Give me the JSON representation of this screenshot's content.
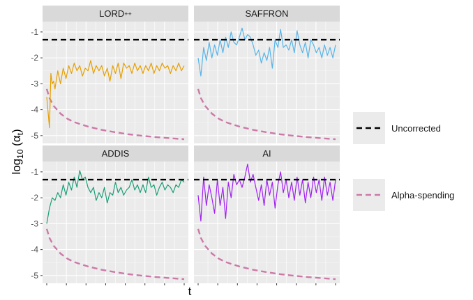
{
  "chart_data": {
    "type": "line",
    "xlabel": "t",
    "ylabel_main": "log",
    "ylabel_sub": "10",
    "ylabel_open": " (α",
    "ylabel_sub2": "t",
    "ylabel_close": ")",
    "ylim": [
      -5.3,
      -0.6
    ],
    "y_ticks": [
      -1,
      -2,
      -3,
      -4,
      -5
    ],
    "y_tick_labels": [
      "-1",
      "-2",
      "-3",
      "-4",
      "-5"
    ],
    "x_domain": [
      0,
      100
    ],
    "grid": true,
    "legend_position": "right",
    "reference_lines": {
      "uncorrected": {
        "label": "Uncorrected",
        "y": -1.3,
        "color": "#000000",
        "dash": "dashed"
      },
      "alpha_spending": {
        "label": "Alpha-spending",
        "color": "#cc79a7",
        "dash": "dashed",
        "x": [
          0,
          2,
          5,
          10,
          15,
          20,
          30,
          40,
          50,
          60,
          70,
          80,
          90,
          100
        ],
        "y": [
          -3.2,
          -3.55,
          -3.85,
          -4.15,
          -4.35,
          -4.48,
          -4.65,
          -4.78,
          -4.87,
          -4.95,
          -5.01,
          -5.06,
          -5.1,
          -5.14
        ]
      }
    },
    "panels": [
      {
        "name": "LORD++",
        "title_main": "LORD",
        "title_sup": "++",
        "color": "#e69f00",
        "x": [
          0,
          2,
          3,
          4,
          5,
          6,
          8,
          10,
          12,
          14,
          16,
          18,
          20,
          22,
          24,
          26,
          28,
          30,
          32,
          34,
          36,
          38,
          40,
          42,
          44,
          46,
          48,
          50,
          52,
          54,
          56,
          58,
          60,
          62,
          64,
          66,
          68,
          70,
          72,
          74,
          76,
          78,
          80,
          82,
          84,
          86,
          88,
          90,
          92,
          94,
          96,
          98,
          100
        ],
        "y": [
          -3.5,
          -4.7,
          -2.6,
          -3.0,
          -2.9,
          -3.2,
          -2.5,
          -3.0,
          -2.4,
          -2.8,
          -2.3,
          -2.6,
          -2.2,
          -2.5,
          -2.3,
          -2.7,
          -2.4,
          -2.5,
          -2.1,
          -2.6,
          -2.3,
          -2.5,
          -2.3,
          -2.7,
          -2.4,
          -2.9,
          -2.3,
          -2.6,
          -2.2,
          -2.8,
          -2.2,
          -2.4,
          -2.3,
          -2.6,
          -2.2,
          -2.5,
          -2.3,
          -2.6,
          -2.3,
          -2.5,
          -2.2,
          -2.6,
          -2.3,
          -2.5,
          -2.2,
          -2.4,
          -2.3,
          -2.6,
          -2.3,
          -2.5,
          -2.2,
          -2.5,
          -2.3
        ]
      },
      {
        "name": "SAFFRON",
        "color": "#56b4e9",
        "x": [
          0,
          2,
          4,
          6,
          8,
          10,
          12,
          14,
          16,
          18,
          20,
          22,
          24,
          26,
          28,
          30,
          32,
          34,
          36,
          38,
          40,
          42,
          44,
          46,
          48,
          50,
          52,
          54,
          56,
          58,
          60,
          62,
          64,
          66,
          68,
          70,
          72,
          74,
          76,
          78,
          80,
          82,
          84,
          86,
          88,
          90,
          92,
          94,
          96,
          98,
          100
        ],
        "y": [
          -2.0,
          -2.7,
          -1.6,
          -2.1,
          -1.4,
          -2.0,
          -1.5,
          -1.9,
          -1.3,
          -1.8,
          -1.2,
          -1.6,
          -1.0,
          -1.4,
          -1.5,
          -1.2,
          -0.85,
          -1.3,
          -1.1,
          -1.2,
          -1.5,
          -1.9,
          -1.7,
          -2.2,
          -1.8,
          -2.1,
          -1.6,
          -2.4,
          -1.3,
          -1.6,
          -0.9,
          -1.6,
          -1.5,
          -1.7,
          -1.3,
          -1.8,
          -0.95,
          -1.5,
          -1.8,
          -1.4,
          -2.0,
          -1.3,
          -1.5,
          -1.8,
          -1.6,
          -2.0,
          -1.5,
          -1.9,
          -1.6,
          -2.0,
          -1.5
        ]
      },
      {
        "name": "ADDIS",
        "color": "#1a9e77",
        "x": [
          0,
          2,
          4,
          6,
          8,
          10,
          12,
          14,
          16,
          18,
          20,
          22,
          24,
          26,
          28,
          30,
          32,
          34,
          36,
          38,
          40,
          42,
          44,
          46,
          48,
          50,
          52,
          54,
          56,
          58,
          60,
          62,
          64,
          66,
          68,
          70,
          72,
          74,
          76,
          78,
          80,
          82,
          84,
          86,
          88,
          90,
          92,
          94,
          96,
          98,
          100
        ],
        "y": [
          -3.0,
          -2.4,
          -2.0,
          -2.1,
          -1.8,
          -2.0,
          -1.5,
          -1.9,
          -1.4,
          -1.7,
          -1.2,
          -1.6,
          -0.95,
          -1.3,
          -1.2,
          -1.6,
          -1.8,
          -1.6,
          -2.1,
          -1.8,
          -2.0,
          -1.6,
          -2.2,
          -1.8,
          -1.9,
          -1.4,
          -1.8,
          -1.6,
          -1.9,
          -1.7,
          -1.6,
          -1.3,
          -1.7,
          -1.5,
          -1.8,
          -1.5,
          -1.8,
          -1.2,
          -1.6,
          -1.5,
          -1.9,
          -1.6,
          -1.4,
          -1.7,
          -1.5,
          -1.6,
          -1.8,
          -1.5,
          -1.6,
          -1.3,
          -1.4
        ]
      },
      {
        "name": "AI",
        "color": "#a020f0",
        "x": [
          0,
          2,
          4,
          6,
          8,
          10,
          12,
          14,
          16,
          18,
          20,
          22,
          24,
          26,
          28,
          30,
          32,
          34,
          36,
          38,
          40,
          42,
          44,
          46,
          48,
          50,
          52,
          54,
          56,
          58,
          60,
          62,
          64,
          66,
          68,
          70,
          72,
          74,
          76,
          78,
          80,
          82,
          84,
          86,
          88,
          90,
          92,
          94,
          96,
          98,
          100
        ],
        "y": [
          -1.9,
          -2.9,
          -1.2,
          -2.3,
          -1.5,
          -2.0,
          -2.6,
          -1.3,
          -2.3,
          -1.6,
          -2.8,
          -1.4,
          -2.0,
          -1.1,
          -1.5,
          -1.3,
          -1.6,
          -1.2,
          -0.7,
          -1.4,
          -1.1,
          -1.6,
          -2.1,
          -1.5,
          -2.3,
          -1.3,
          -1.9,
          -1.4,
          -2.4,
          -1.5,
          -1.0,
          -1.8,
          -1.3,
          -2.0,
          -1.4,
          -2.1,
          -1.2,
          -1.9,
          -1.3,
          -2.2,
          -1.4,
          -2.0,
          -1.2,
          -1.8,
          -1.3,
          -2.1,
          -1.2,
          -1.9,
          -1.4,
          -2.1,
          -1.3
        ]
      }
    ]
  }
}
